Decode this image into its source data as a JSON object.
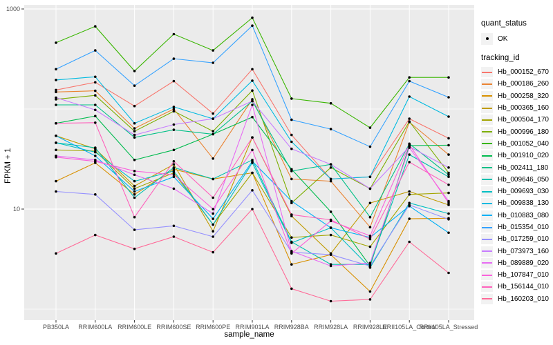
{
  "legend": {
    "quant_status_title": "quant_status",
    "quant_status_value": "OK",
    "tracking_title": "tracking_id"
  },
  "chart_data": {
    "type": "line",
    "title": "",
    "xlabel": "sample_name",
    "ylabel": "FPKM + 1",
    "y_scale": "log10",
    "ylim": [
      1,
      1000
    ],
    "y_major_ticks": [
      10,
      1000
    ],
    "y_tick_labels": [
      "10",
      "1000"
    ],
    "y_minor_gridlines": [
      1,
      100
    ],
    "grid": "white-on-gray",
    "panel_bg": "#EBEBEB",
    "point_color": "#000000",
    "legend_position": "right",
    "categories": [
      "PB350LA",
      "RRIM600LA",
      "RRIM600LE",
      "RRIM600SE",
      "RRIM600PE",
      "RRIM901LA",
      "RRIM928BA",
      "RRIM928LA",
      "RRIM928LE",
      "RRII105LA_Control",
      "RRII105LA_Stressed"
    ],
    "series": [
      {
        "name": "Hb_000152_670",
        "color": "#F8766D",
        "values": [
          155,
          185,
          107,
          190,
          90,
          250,
          55,
          20,
          21,
          80,
          51
        ]
      },
      {
        "name": "Hb_000186_260",
        "color": "#EA8331",
        "values": [
          148,
          152,
          64,
          100,
          32,
          125,
          20,
          19,
          6.6,
          74,
          35
        ]
      },
      {
        "name": "Hb_000258_320",
        "color": "#D89000",
        "values": [
          19,
          29,
          14,
          25,
          20,
          23,
          2.8,
          3.5,
          1.5,
          8,
          8.1
        ]
      },
      {
        "name": "Hb_000365_160",
        "color": "#C09B00",
        "values": [
          54,
          40,
          17,
          28,
          6,
          52,
          8.5,
          3.6,
          11.5,
          15,
          11
        ]
      },
      {
        "name": "Hb_000504_170",
        "color": "#A3A500",
        "values": [
          39,
          38,
          16,
          23,
          7,
          23,
          5.2,
          5.5,
          4.2,
          14,
          14.5
        ]
      },
      {
        "name": "Hb_000996_180",
        "color": "#7CAE00",
        "values": [
          125,
          137,
          60,
          95,
          60,
          153,
          11.5,
          26,
          16,
          75,
          23
        ]
      },
      {
        "name": "Hb_001052_040",
        "color": "#39B600",
        "values": [
          460,
          670,
          240,
          560,
          385,
          817,
          127,
          114,
          65,
          207,
          207
        ]
      },
      {
        "name": "Hb_001910_020",
        "color": "#00BB4E",
        "values": [
          72,
          85,
          31,
          39,
          56,
          83,
          25,
          9.4,
          2.7,
          43,
          43.5
        ]
      },
      {
        "name": "Hb_002411_180",
        "color": "#00C087",
        "values": [
          110,
          110,
          52,
          62,
          56,
          120,
          24,
          28,
          8.3,
          45,
          22
        ]
      },
      {
        "name": "Hb_009646_050",
        "color": "#00C0AF",
        "values": [
          46,
          41,
          13,
          26,
          20,
          31,
          4.7,
          2.8,
          2.8,
          35,
          21
        ]
      },
      {
        "name": "Hb_009693_030",
        "color": "#00BFC4",
        "values": [
          46,
          37,
          19,
          24,
          7,
          29,
          4.6,
          6.5,
          2.6,
          11.5,
          9
        ]
      },
      {
        "name": "Hb_009838_130",
        "color": "#00BAE0",
        "values": [
          195,
          210,
          72,
          105,
          80,
          192,
          47,
          20,
          21,
          133,
          84
        ]
      },
      {
        "name": "Hb_010883_080",
        "color": "#00B0F6",
        "values": [
          54,
          34,
          15,
          21,
          8,
          30,
          12,
          6.5,
          5.2,
          10.7,
          5.8
        ]
      },
      {
        "name": "Hb_015354_010",
        "color": "#35A2FF",
        "values": [
          250,
          385,
          171,
          318,
          290,
          681,
          78,
          63,
          42,
          190,
          131
        ]
      },
      {
        "name": "Hb_017259_010",
        "color": "#9590FF",
        "values": [
          15,
          14,
          6.2,
          6.8,
          5.3,
          15.4,
          3.7,
          3.5,
          2.7,
          11,
          7.9
        ]
      },
      {
        "name": "Hb_073973_160",
        "color": "#C77CFF",
        "values": [
          130,
          98,
          55,
          70,
          80,
          120,
          40,
          28,
          16,
          42,
          26
        ]
      },
      {
        "name": "Hb_089889_020",
        "color": "#E76BF3",
        "values": [
          34,
          31,
          22,
          16,
          9,
          110,
          3.8,
          2.7,
          2.9,
          41,
          12
        ]
      },
      {
        "name": "Hb_107847_010",
        "color": "#FA62DB",
        "values": [
          33,
          30,
          24,
          22,
          10,
          39,
          3.6,
          7.6,
          5.4,
          44,
          11.5
        ]
      },
      {
        "name": "Hb_156144_010",
        "color": "#FF62BC",
        "values": [
          72,
          73,
          8.3,
          30,
          13,
          52,
          8.8,
          7.8,
          5,
          29.5,
          17.5
        ]
      },
      {
        "name": "Hb_160203_010",
        "color": "#FF6A98",
        "values": [
          3.6,
          5.5,
          4,
          5.3,
          3.7,
          10,
          1.6,
          1.2,
          1.25,
          4.7,
          2.3
        ]
      }
    ]
  }
}
